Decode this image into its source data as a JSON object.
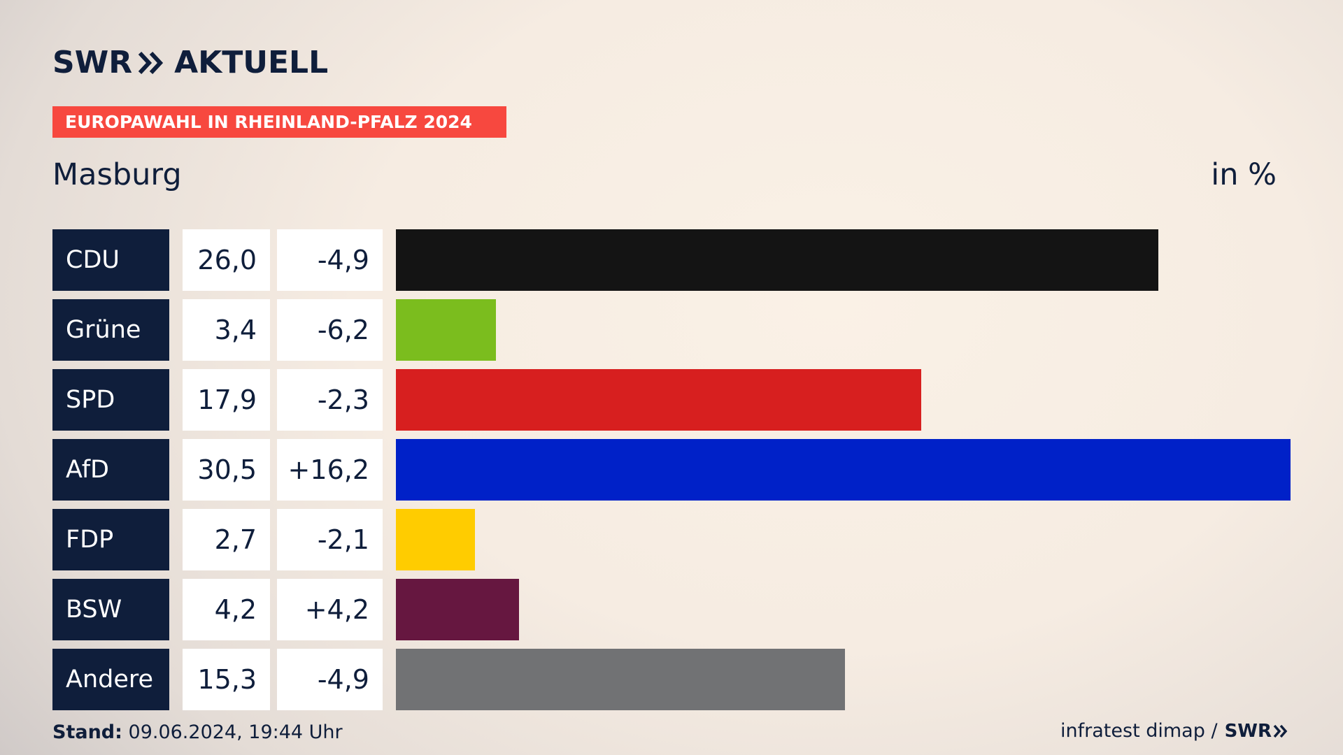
{
  "header": {
    "logo_swr": "SWR",
    "logo_aktuell": "AKTUELL",
    "banner": "EUROPAWAHL IN RHEINLAND-PFALZ 2024",
    "region": "Masburg",
    "unit": "in %"
  },
  "chart_data": {
    "type": "bar",
    "orientation": "horizontal",
    "categories": [
      "CDU",
      "Grüne",
      "SPD",
      "AfD",
      "FDP",
      "BSW",
      "Andere"
    ],
    "values": [
      26.0,
      3.4,
      17.9,
      30.5,
      2.7,
      4.2,
      15.3
    ],
    "value_labels": [
      "26,0",
      "3,4",
      "17,9",
      "30,5",
      "2,7",
      "4,2",
      "15,3"
    ],
    "diff_labels": [
      "-4,9",
      "-6,2",
      "-2,3",
      "+16,2",
      "-2,1",
      "+4,2",
      "-4,9"
    ],
    "colors": [
      "#141414",
      "#7bbd1e",
      "#d71f1f",
      "#0021c8",
      "#ffcc00",
      "#661740",
      "#717274"
    ],
    "xlim": [
      0,
      30.5
    ],
    "grid": false,
    "legend": "none"
  },
  "footer": {
    "stand_label": "Stand:",
    "stand_value": "09.06.2024, 19:44 Uhr",
    "source": "infratest dimap /",
    "source_logo": "SWR"
  }
}
